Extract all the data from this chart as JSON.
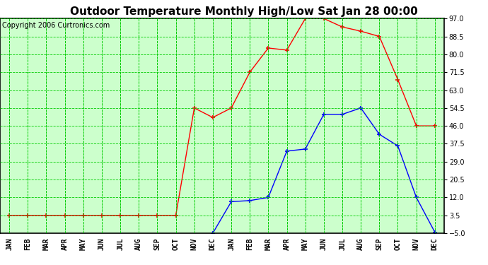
{
  "title": "Outdoor Temperature Monthly High/Low Sat Jan 28 00:00",
  "copyright": "Copyright 2006 Curtronics.com",
  "x_labels": [
    "JAN",
    "FEB",
    "MAR",
    "APR",
    "MAY",
    "JUN",
    "JUL",
    "AUG",
    "SEP",
    "OCT",
    "NOV",
    "DEC",
    "JAN",
    "FEB",
    "MAR",
    "APR",
    "MAY",
    "JUN",
    "JUL",
    "AUG",
    "SEP",
    "OCT",
    "NOV",
    "DEC"
  ],
  "red_data": [
    3.5,
    3.5,
    3.5,
    3.5,
    3.5,
    3.5,
    3.5,
    3.5,
    3.5,
    3.5,
    54.5,
    50.0,
    54.5,
    71.5,
    83.0,
    82.0,
    97.0,
    97.0,
    93.0,
    91.0,
    88.5,
    68.0,
    46.0,
    46.0
  ],
  "blue_data": [
    null,
    null,
    null,
    null,
    null,
    null,
    null,
    null,
    null,
    null,
    null,
    -5.0,
    10.0,
    10.5,
    12.0,
    34.0,
    35.0,
    51.5,
    51.5,
    54.5,
    42.0,
    36.5,
    12.0,
    -4.5
  ],
  "y_ticks": [
    -5.0,
    3.5,
    12.0,
    20.5,
    29.0,
    37.5,
    46.0,
    54.5,
    63.0,
    71.5,
    80.0,
    88.5,
    97.0
  ],
  "y_min": -5.0,
  "y_max": 97.0,
  "bg_color": "#ffffff",
  "plot_bg_color": "#ccffcc",
  "grid_color": "#00cc00",
  "red_color": "#ff0000",
  "blue_color": "#0000ff",
  "title_fontsize": 11,
  "copyright_fontsize": 7
}
